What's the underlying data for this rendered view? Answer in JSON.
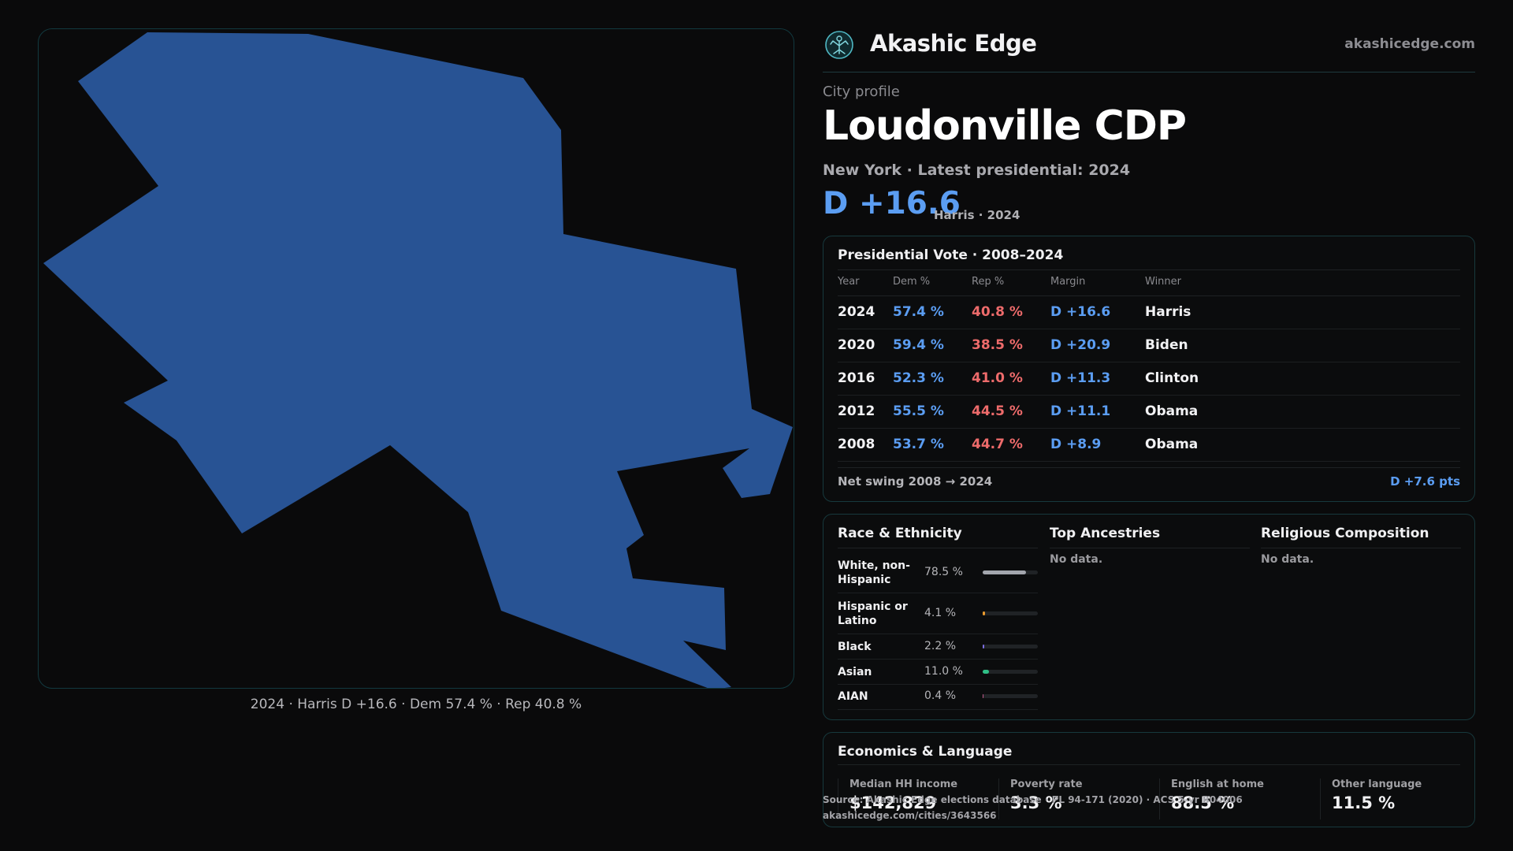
{
  "map": {
    "caption": "2024 · Harris D +16.6 · Dem 57.4 % · Rep 40.8 %",
    "fill_color": "#285394"
  },
  "brand": {
    "name": "Akashic Edge",
    "url": "akashicedge.com",
    "logo_icon": "tree-emblem-icon"
  },
  "profile": {
    "eyebrow": "City profile",
    "title": "Loudonville CDP",
    "subtitle": "New York  · Latest presidential: 2024",
    "margin": "D +16.6",
    "margin_note": "Harris · 2024"
  },
  "vote": {
    "title": "Presidential Vote · 2008–2024",
    "headers": {
      "year": "Year",
      "dem": "Dem %",
      "rep": "Rep %",
      "margin": "Margin",
      "winner": "Winner"
    },
    "rows": [
      {
        "year": "2024",
        "dem": "57.4 %",
        "rep": "40.8 %",
        "margin": "D +16.6",
        "winner": "Harris"
      },
      {
        "year": "2020",
        "dem": "59.4 %",
        "rep": "38.5 %",
        "margin": "D +20.9",
        "winner": "Biden"
      },
      {
        "year": "2016",
        "dem": "52.3 %",
        "rep": "41.0 %",
        "margin": "D +11.3",
        "winner": "Clinton"
      },
      {
        "year": "2012",
        "dem": "55.5 %",
        "rep": "44.5 %",
        "margin": "D +11.1",
        "winner": "Obama"
      },
      {
        "year": "2008",
        "dem": "53.7 %",
        "rep": "44.7 %",
        "margin": "D +8.9",
        "winner": "Obama"
      }
    ],
    "swing_label": "Net swing 2008 → 2024",
    "swing_value": "D +7.6 pts"
  },
  "demographics": {
    "race_title": "Race & Ethnicity",
    "race_rows": [
      {
        "label": "White, non-Hispanic",
        "pct": "78.5 %",
        "share": 0.785,
        "color": "#a3a6ad"
      },
      {
        "label": "Hispanic or Latino",
        "pct": "4.1 %",
        "share": 0.041,
        "color": "#e99a2e"
      },
      {
        "label": "Black",
        "pct": "2.2 %",
        "share": 0.022,
        "color": "#7c6ee0"
      },
      {
        "label": "Asian",
        "pct": "11.0 %",
        "share": 0.11,
        "color": "#2fbf86"
      },
      {
        "label": "AIAN",
        "pct": "0.4 %",
        "share": 0.004,
        "color": "#c05a8a"
      }
    ],
    "ancestry_title": "Top Ancestries",
    "ancestry_empty": "No data.",
    "religion_title": "Religious Composition",
    "religion_empty": "No data."
  },
  "economics": {
    "title": "Economics & Language",
    "stats": [
      {
        "label": "Median HH income",
        "value": "$142,829"
      },
      {
        "label": "Poverty rate",
        "value": "3.3 %"
      },
      {
        "label": "English at home",
        "value": "88.5 %"
      },
      {
        "label": "Other language",
        "value": "11.5 %"
      }
    ]
  },
  "source": {
    "line1": "Source: Akashic Edge elections database · PL 94-171 (2020) · ACS 5-yr B04006",
    "line2": "akashicedge.com/cities/3643566"
  }
}
